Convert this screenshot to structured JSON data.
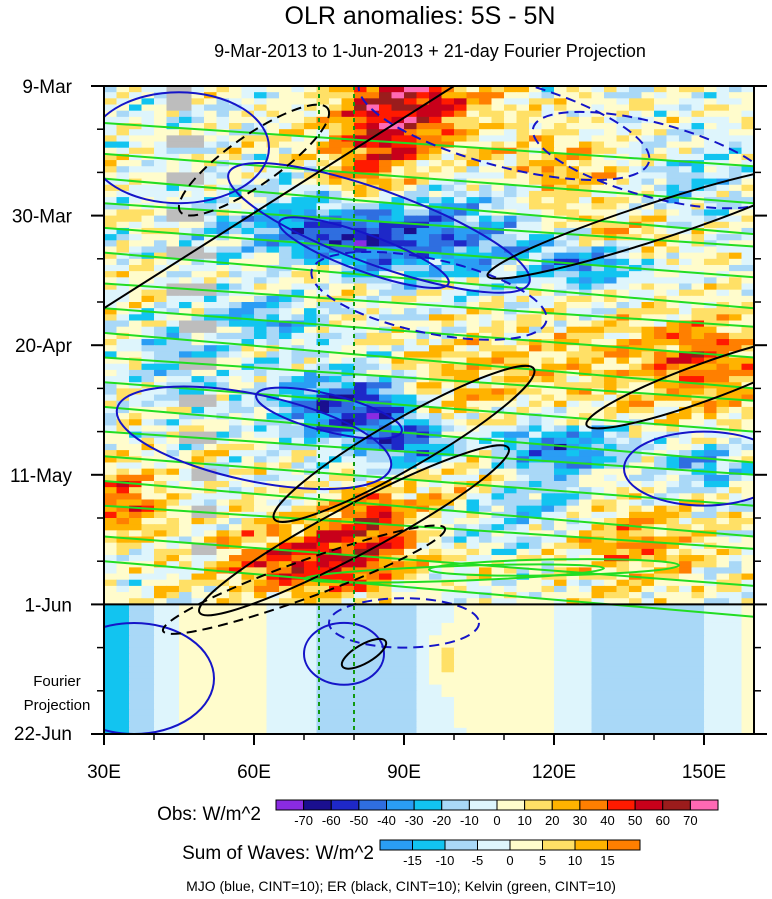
{
  "chart_data": {
    "type": "heatmap",
    "title": "OLR anomalies: 5S - 5N",
    "subtitle": "9-Mar-2013 to 1-Jun-2013 + 21-day Fourier Projection",
    "x_axis": {
      "unit": "degrees longitude East",
      "range": [
        30,
        160
      ],
      "tick_values": [
        30,
        60,
        90,
        120,
        150
      ],
      "tick_labels": [
        "30E",
        "60E",
        "90E",
        "120E",
        "150E"
      ]
    },
    "y_axis": {
      "unit": "days since 9-Mar-2013 (time increases downward)",
      "range": [
        0,
        105
      ],
      "tick_values": [
        0,
        21,
        42,
        63,
        84,
        105
      ],
      "tick_labels": [
        "9-Mar",
        "30-Mar",
        "20-Apr",
        "11-May",
        "1-Jun",
        "22-Jun"
      ]
    },
    "observation_end_day": 84,
    "projection_label": [
      "Fourier",
      "Projection"
    ],
    "reference_longitudes": [
      73,
      80
    ],
    "obs_colorbar": {
      "label": "Obs: W/m^2",
      "levels": [
        -70,
        -60,
        -50,
        -40,
        -30,
        -20,
        -10,
        0,
        10,
        20,
        30,
        40,
        50,
        60,
        70
      ],
      "colors": [
        "#8a2be2",
        "#1a0f8f",
        "#1e28c8",
        "#2f6ee0",
        "#2a9df4",
        "#12c4f0",
        "#a9d8f7",
        "#def5fc",
        "#fffccc",
        "#ffe066",
        "#ffb300",
        "#ff7f00",
        "#ff1a00",
        "#c8001a",
        "#9b1c1c",
        "#ff69b4"
      ]
    },
    "waves_colorbar": {
      "label": "Sum of Waves: W/m^2",
      "levels": [
        -15,
        -10,
        -5,
        0,
        5,
        10,
        15
      ],
      "colors": [
        "#2a9df4",
        "#12c4f0",
        "#a9d8f7",
        "#def5fc",
        "#fffccc",
        "#ffe066",
        "#ffb300",
        "#ff7f00"
      ]
    },
    "contour_legend": "MJO (blue, CINT=10); ER (black, CINT=10); Kelvin (green, CINT=10)",
    "series": [
      {
        "name": "MJO",
        "color": "#1515c8"
      },
      {
        "name": "ER",
        "color": "#000000"
      },
      {
        "name": "Kelvin",
        "color": "#22dd22"
      }
    ]
  }
}
